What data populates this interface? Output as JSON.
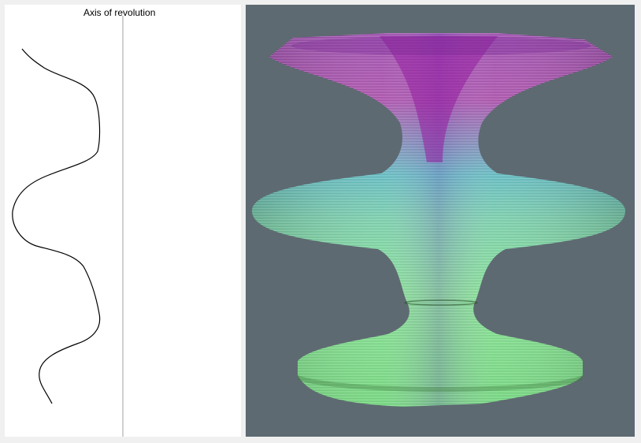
{
  "axis_label": "Axis of revolution",
  "colors": {
    "window_background": "#f0f0f0",
    "drawing_background": "#ffffff",
    "axis_line": "#a0a0a0",
    "profile_stroke": "#000000",
    "viewport_background": "#5e6a72",
    "vase_upper": "#9a2fa8",
    "vase_middle": "#6fd6a0",
    "vase_lower": "#8cf08c"
  }
}
